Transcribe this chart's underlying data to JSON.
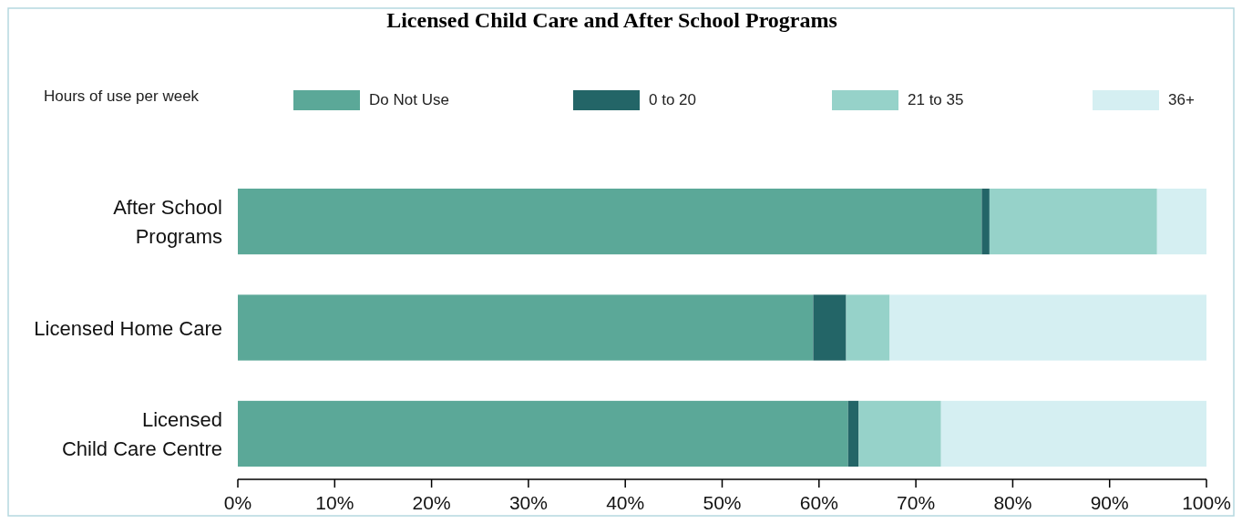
{
  "chart_data": {
    "type": "bar",
    "orientation": "horizontal",
    "stacked": true,
    "title": "Licensed Child Care and After School Programs",
    "legend_title": "Hours of use per week",
    "legend": "top",
    "categories": [
      "After School\nPrograms",
      "Licensed Home Care",
      "Licensed\nChild Care Centre"
    ],
    "series": [
      {
        "name": "Do Not Use",
        "color": "#5ba898",
        "values": [
          76.8,
          59.4,
          63.0
        ]
      },
      {
        "name": "0 to 20",
        "color": "#236567",
        "values": [
          0.8,
          3.4,
          1.1
        ]
      },
      {
        "name": "21 to 35",
        "color": "#96d2c9",
        "values": [
          17.3,
          4.5,
          8.5
        ]
      },
      {
        "name": "36+",
        "color": "#d5eff2",
        "values": [
          5.1,
          32.7,
          27.4
        ]
      }
    ],
    "xlim": [
      0,
      100
    ],
    "xticks": [
      {
        "value": 0,
        "label": "0%"
      },
      {
        "value": 10,
        "label": "10%"
      },
      {
        "value": 20,
        "label": "20%"
      },
      {
        "value": 30,
        "label": "30%"
      },
      {
        "value": 40,
        "label": "40%"
      },
      {
        "value": 50,
        "label": "50%"
      },
      {
        "value": 60,
        "label": "60%"
      },
      {
        "value": 70,
        "label": "70%"
      },
      {
        "value": 80,
        "label": "80%"
      },
      {
        "value": 90,
        "label": "90%"
      },
      {
        "value": 100,
        "label": "100%"
      }
    ],
    "grid": false
  }
}
